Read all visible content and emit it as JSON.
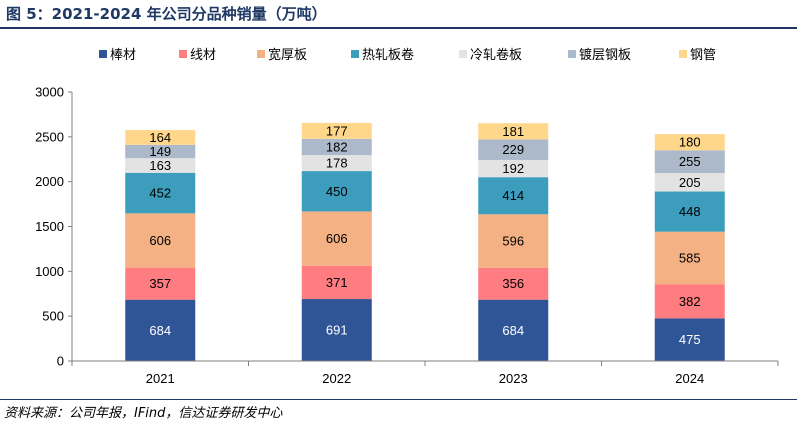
{
  "figure": {
    "title": "图 5：2021-2024 年公司分品种销量（万吨）",
    "source": "资料来源：公司年报，IFind，信达证券研发中心"
  },
  "chart_data": {
    "type": "bar",
    "stacked": true,
    "categories": [
      "2021",
      "2022",
      "2023",
      "2024"
    ],
    "ylim": [
      0,
      3000
    ],
    "yticks": [
      0,
      500,
      1000,
      1500,
      2000,
      2500,
      3000
    ],
    "legend_position": "top",
    "grid": false,
    "series": [
      {
        "name": "棒材",
        "color": "#2f5597",
        "label_color": "#ffffff",
        "values": [
          684,
          691,
          684,
          475
        ]
      },
      {
        "name": "线材",
        "color": "#ff7c80",
        "label_color": "#000000",
        "values": [
          357,
          371,
          356,
          382
        ]
      },
      {
        "name": "宽厚板",
        "color": "#f4b183",
        "label_color": "#000000",
        "values": [
          606,
          606,
          596,
          585
        ]
      },
      {
        "name": "热轧板卷",
        "color": "#3c9dbd",
        "label_color": "#000000",
        "values": [
          452,
          450,
          414,
          448
        ]
      },
      {
        "name": "冷轧卷板",
        "color": "#e3e3e3",
        "label_color": "#000000",
        "values": [
          163,
          178,
          192,
          205
        ]
      },
      {
        "name": "镀层钢板",
        "color": "#acb9ca",
        "label_color": "#000000",
        "values": [
          149,
          182,
          229,
          255
        ]
      },
      {
        "name": "钢管",
        "color": "#ffd78a",
        "label_color": "#000000",
        "values": [
          164,
          177,
          181,
          180
        ]
      }
    ]
  }
}
